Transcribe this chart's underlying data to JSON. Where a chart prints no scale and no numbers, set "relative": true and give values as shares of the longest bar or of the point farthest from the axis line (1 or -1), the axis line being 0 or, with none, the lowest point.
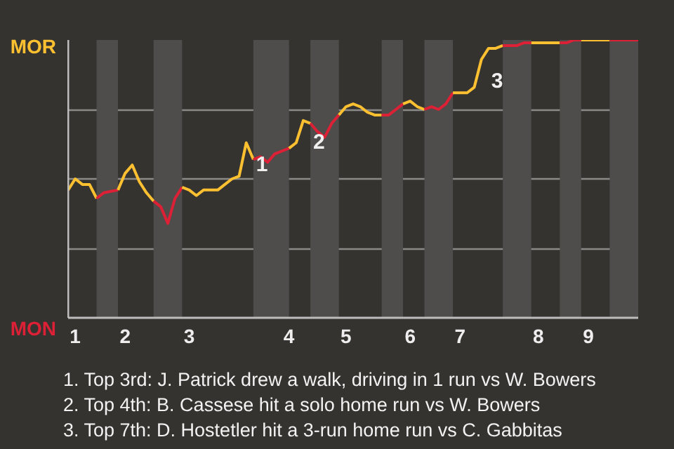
{
  "chart_data": {
    "type": "line",
    "relative": true,
    "grid": "y",
    "marker": "none",
    "line_style": "solid",
    "categories": [
      null,
      "1",
      null,
      null,
      null,
      null,
      null,
      null,
      "2",
      null,
      null,
      null,
      null,
      null,
      null,
      null,
      null,
      "3",
      null,
      null,
      null,
      null,
      null,
      null,
      null,
      null,
      null,
      null,
      null,
      null,
      null,
      "4",
      null,
      null,
      null,
      null,
      null,
      null,
      null,
      "5",
      null,
      null,
      null,
      null,
      null,
      null,
      null,
      null,
      "6",
      null,
      null,
      null,
      null,
      null,
      null,
      "7",
      null,
      null,
      null,
      null,
      null,
      null,
      null,
      null,
      null,
      null,
      "8",
      null,
      null,
      null,
      null,
      null,
      null,
      "9",
      null,
      null,
      null,
      null,
      null,
      null,
      null
    ],
    "series": [
      {
        "color": "#fdc030",
        "values": [
          0.46,
          0.5,
          0.48,
          0.48,
          0.43,
          null,
          null,
          null,
          null,
          null,
          null,
          null,
          null,
          null,
          null,
          null,
          null,
          null,
          null,
          null,
          null,
          null,
          null,
          null,
          null,
          null,
          null,
          null,
          null,
          null,
          null,
          null,
          null,
          null,
          null,
          null,
          null,
          null,
          null,
          null,
          null,
          null,
          null,
          null,
          null,
          null,
          null,
          null,
          null,
          null,
          null,
          null,
          null,
          null,
          null,
          null,
          null,
          null,
          null,
          null,
          null,
          null,
          null,
          null,
          null,
          null,
          null,
          null,
          null,
          null,
          null,
          null,
          null,
          null,
          null,
          null,
          null,
          null,
          null,
          null,
          null
        ]
      },
      {
        "color": "#dc2035",
        "values": [
          null,
          null,
          null,
          null,
          0.43,
          0.45,
          0.455,
          0.46,
          null,
          null,
          null,
          null,
          null,
          null,
          null,
          null,
          null,
          null,
          null,
          null,
          null,
          null,
          null,
          null,
          null,
          null,
          null,
          null,
          null,
          null,
          null,
          null,
          null,
          null,
          null,
          null,
          null,
          null,
          null,
          null,
          null,
          null,
          null,
          null,
          null,
          null,
          null,
          null,
          null,
          null,
          null,
          null,
          null,
          null,
          null,
          null,
          null,
          null,
          null,
          null,
          null,
          null,
          null,
          null,
          null,
          null,
          null,
          null,
          null,
          null,
          null,
          null,
          null,
          null,
          null,
          null,
          null,
          null,
          null,
          null,
          null
        ]
      },
      {
        "color": "#fdc030",
        "values": [
          null,
          null,
          null,
          null,
          null,
          null,
          null,
          0.46,
          0.52,
          0.55,
          0.49,
          0.45,
          0.42,
          null,
          null,
          null,
          null,
          null,
          null,
          null,
          null,
          null,
          null,
          null,
          null,
          null,
          null,
          null,
          null,
          null,
          null,
          null,
          null,
          null,
          null,
          null,
          null,
          null,
          null,
          null,
          null,
          null,
          null,
          null,
          null,
          null,
          null,
          null,
          null,
          null,
          null,
          null,
          null,
          null,
          null,
          null,
          null,
          null,
          null,
          null,
          null,
          null,
          null,
          null,
          null,
          null,
          null,
          null,
          null,
          null,
          null,
          null,
          null,
          null,
          null,
          null,
          null,
          null,
          null,
          null,
          null
        ]
      },
      {
        "color": "#dc2035",
        "values": [
          null,
          null,
          null,
          null,
          null,
          null,
          null,
          null,
          null,
          null,
          null,
          null,
          0.42,
          0.4,
          0.34,
          0.43,
          0.47,
          null,
          null,
          null,
          null,
          null,
          null,
          null,
          null,
          null,
          null,
          null,
          null,
          null,
          null,
          null,
          null,
          null,
          null,
          null,
          null,
          null,
          null,
          null,
          null,
          null,
          null,
          null,
          null,
          null,
          null,
          null,
          null,
          null,
          null,
          null,
          null,
          null,
          null,
          null,
          null,
          null,
          null,
          null,
          null,
          null,
          null,
          null,
          null,
          null,
          null,
          null,
          null,
          null,
          null,
          null,
          null,
          null,
          null,
          null,
          null,
          null,
          null,
          null,
          null
        ]
      },
      {
        "color": "#fdc030",
        "values": [
          null,
          null,
          null,
          null,
          null,
          null,
          null,
          null,
          null,
          null,
          null,
          null,
          null,
          null,
          null,
          null,
          0.47,
          0.46,
          0.44,
          0.46,
          0.46,
          0.46,
          0.48,
          0.5,
          0.51,
          0.63,
          0.57,
          null,
          null,
          null,
          null,
          null,
          null,
          null,
          null,
          null,
          null,
          null,
          null,
          null,
          null,
          null,
          null,
          null,
          null,
          null,
          null,
          null,
          null,
          null,
          null,
          null,
          null,
          null,
          null,
          null,
          null,
          null,
          null,
          null,
          null,
          null,
          null,
          null,
          null,
          null,
          null,
          null,
          null,
          null,
          null,
          null,
          null,
          null,
          null,
          null,
          null,
          null,
          null,
          null,
          null
        ]
      },
      {
        "color": "#dc2035",
        "values": [
          null,
          null,
          null,
          null,
          null,
          null,
          null,
          null,
          null,
          null,
          null,
          null,
          null,
          null,
          null,
          null,
          null,
          null,
          null,
          null,
          null,
          null,
          null,
          null,
          null,
          null,
          0.57,
          0.58,
          0.56,
          0.59,
          0.6,
          0.61,
          null,
          null,
          null,
          null,
          null,
          null,
          null,
          null,
          null,
          null,
          null,
          null,
          null,
          null,
          null,
          null,
          null,
          null,
          null,
          null,
          null,
          null,
          null,
          null,
          null,
          null,
          null,
          null,
          null,
          null,
          null,
          null,
          null,
          null,
          null,
          null,
          null,
          null,
          null,
          null,
          null,
          null,
          null,
          null,
          null,
          null,
          null,
          null,
          null
        ]
      },
      {
        "color": "#fdc030",
        "values": [
          null,
          null,
          null,
          null,
          null,
          null,
          null,
          null,
          null,
          null,
          null,
          null,
          null,
          null,
          null,
          null,
          null,
          null,
          null,
          null,
          null,
          null,
          null,
          null,
          null,
          null,
          null,
          null,
          null,
          null,
          null,
          0.61,
          0.63,
          0.71,
          0.7,
          null,
          null,
          null,
          null,
          null,
          null,
          null,
          null,
          null,
          null,
          null,
          null,
          null,
          null,
          null,
          null,
          null,
          null,
          null,
          null,
          null,
          null,
          null,
          null,
          null,
          null,
          null,
          null,
          null,
          null,
          null,
          null,
          null,
          null,
          null,
          null,
          null,
          null,
          null,
          null,
          null,
          null,
          null,
          null,
          null,
          null
        ]
      },
      {
        "color": "#dc2035",
        "values": [
          null,
          null,
          null,
          null,
          null,
          null,
          null,
          null,
          null,
          null,
          null,
          null,
          null,
          null,
          null,
          null,
          null,
          null,
          null,
          null,
          null,
          null,
          null,
          null,
          null,
          null,
          null,
          null,
          null,
          null,
          null,
          null,
          null,
          null,
          0.7,
          0.67,
          0.65,
          0.7,
          0.73,
          null,
          null,
          null,
          null,
          null,
          null,
          null,
          null,
          null,
          null,
          null,
          null,
          null,
          null,
          null,
          null,
          null,
          null,
          null,
          null,
          null,
          null,
          null,
          null,
          null,
          null,
          null,
          null,
          null,
          null,
          null,
          null,
          null,
          null,
          null,
          null,
          null,
          null,
          null,
          null,
          null,
          null
        ]
      },
      {
        "color": "#fdc030",
        "values": [
          null,
          null,
          null,
          null,
          null,
          null,
          null,
          null,
          null,
          null,
          null,
          null,
          null,
          null,
          null,
          null,
          null,
          null,
          null,
          null,
          null,
          null,
          null,
          null,
          null,
          null,
          null,
          null,
          null,
          null,
          null,
          null,
          null,
          null,
          null,
          null,
          null,
          null,
          0.73,
          0.76,
          0.77,
          0.76,
          0.74,
          0.73,
          0.73,
          null,
          null,
          null,
          null,
          null,
          null,
          null,
          null,
          null,
          null,
          null,
          null,
          null,
          null,
          null,
          null,
          null,
          null,
          null,
          null,
          null,
          null,
          null,
          null,
          null,
          null,
          null,
          null,
          null,
          null,
          null,
          null,
          null,
          null,
          null,
          null
        ]
      },
      {
        "color": "#dc2035",
        "values": [
          null,
          null,
          null,
          null,
          null,
          null,
          null,
          null,
          null,
          null,
          null,
          null,
          null,
          null,
          null,
          null,
          null,
          null,
          null,
          null,
          null,
          null,
          null,
          null,
          null,
          null,
          null,
          null,
          null,
          null,
          null,
          null,
          null,
          null,
          null,
          null,
          null,
          null,
          null,
          null,
          null,
          null,
          null,
          null,
          0.73,
          0.73,
          0.75,
          0.77,
          null,
          null,
          null,
          null,
          null,
          null,
          null,
          null,
          null,
          null,
          null,
          null,
          null,
          null,
          null,
          null,
          null,
          null,
          null,
          null,
          null,
          null,
          null,
          null,
          null,
          null,
          null,
          null,
          null,
          null,
          null,
          null,
          null
        ]
      },
      {
        "color": "#fdc030",
        "values": [
          null,
          null,
          null,
          null,
          null,
          null,
          null,
          null,
          null,
          null,
          null,
          null,
          null,
          null,
          null,
          null,
          null,
          null,
          null,
          null,
          null,
          null,
          null,
          null,
          null,
          null,
          null,
          null,
          null,
          null,
          null,
          null,
          null,
          null,
          null,
          null,
          null,
          null,
          null,
          null,
          null,
          null,
          null,
          null,
          null,
          null,
          null,
          0.77,
          0.78,
          0.76,
          0.75,
          null,
          null,
          null,
          null,
          null,
          null,
          null,
          null,
          null,
          null,
          null,
          null,
          null,
          null,
          null,
          null,
          null,
          null,
          null,
          null,
          null,
          null,
          null,
          null,
          null,
          null,
          null,
          null,
          null,
          null
        ]
      },
      {
        "color": "#dc2035",
        "values": [
          null,
          null,
          null,
          null,
          null,
          null,
          null,
          null,
          null,
          null,
          null,
          null,
          null,
          null,
          null,
          null,
          null,
          null,
          null,
          null,
          null,
          null,
          null,
          null,
          null,
          null,
          null,
          null,
          null,
          null,
          null,
          null,
          null,
          null,
          null,
          null,
          null,
          null,
          null,
          null,
          null,
          null,
          null,
          null,
          null,
          null,
          null,
          null,
          null,
          null,
          0.75,
          0.76,
          0.75,
          0.77,
          0.81,
          null,
          null,
          null,
          null,
          null,
          null,
          null,
          null,
          null,
          null,
          null,
          null,
          null,
          null,
          null,
          null,
          null,
          null,
          null,
          null,
          null,
          null,
          null,
          null,
          null,
          null
        ]
      },
      {
        "color": "#fdc030",
        "values": [
          null,
          null,
          null,
          null,
          null,
          null,
          null,
          null,
          null,
          null,
          null,
          null,
          null,
          null,
          null,
          null,
          null,
          null,
          null,
          null,
          null,
          null,
          null,
          null,
          null,
          null,
          null,
          null,
          null,
          null,
          null,
          null,
          null,
          null,
          null,
          null,
          null,
          null,
          null,
          null,
          null,
          null,
          null,
          null,
          null,
          null,
          null,
          null,
          null,
          null,
          null,
          null,
          null,
          null,
          0.81,
          0.81,
          0.81,
          0.83,
          0.93,
          0.97,
          0.97,
          0.98,
          null,
          null,
          null,
          null,
          null,
          null,
          null,
          null,
          null,
          null,
          null,
          null,
          null,
          null,
          null,
          null,
          null,
          null,
          null
        ]
      },
      {
        "color": "#dc2035",
        "values": [
          null,
          null,
          null,
          null,
          null,
          null,
          null,
          null,
          null,
          null,
          null,
          null,
          null,
          null,
          null,
          null,
          null,
          null,
          null,
          null,
          null,
          null,
          null,
          null,
          null,
          null,
          null,
          null,
          null,
          null,
          null,
          null,
          null,
          null,
          null,
          null,
          null,
          null,
          null,
          null,
          null,
          null,
          null,
          null,
          null,
          null,
          null,
          null,
          null,
          null,
          null,
          null,
          null,
          null,
          null,
          null,
          null,
          null,
          null,
          null,
          null,
          0.98,
          0.98,
          0.98,
          0.99,
          0.99,
          null,
          null,
          null,
          null,
          null,
          null,
          null,
          null,
          null,
          null,
          null,
          null,
          null,
          null,
          null
        ]
      },
      {
        "color": "#fdc030",
        "values": [
          null,
          null,
          null,
          null,
          null,
          null,
          null,
          null,
          null,
          null,
          null,
          null,
          null,
          null,
          null,
          null,
          null,
          null,
          null,
          null,
          null,
          null,
          null,
          null,
          null,
          null,
          null,
          null,
          null,
          null,
          null,
          null,
          null,
          null,
          null,
          null,
          null,
          null,
          null,
          null,
          null,
          null,
          null,
          null,
          null,
          null,
          null,
          null,
          null,
          null,
          null,
          null,
          null,
          null,
          null,
          null,
          null,
          null,
          null,
          null,
          null,
          null,
          null,
          null,
          null,
          0.99,
          0.99,
          0.99,
          0.99,
          0.99,
          null,
          null,
          null,
          null,
          null,
          null,
          null,
          null,
          null,
          null,
          null
        ]
      },
      {
        "color": "#dc2035",
        "values": [
          null,
          null,
          null,
          null,
          null,
          null,
          null,
          null,
          null,
          null,
          null,
          null,
          null,
          null,
          null,
          null,
          null,
          null,
          null,
          null,
          null,
          null,
          null,
          null,
          null,
          null,
          null,
          null,
          null,
          null,
          null,
          null,
          null,
          null,
          null,
          null,
          null,
          null,
          null,
          null,
          null,
          null,
          null,
          null,
          null,
          null,
          null,
          null,
          null,
          null,
          null,
          null,
          null,
          null,
          null,
          null,
          null,
          null,
          null,
          null,
          null,
          null,
          null,
          null,
          null,
          null,
          null,
          null,
          null,
          0.99,
          0.99,
          1.0,
          1.0,
          null,
          null,
          null,
          null,
          null,
          null,
          null,
          null
        ]
      },
      {
        "color": "#fdc030",
        "values": [
          null,
          null,
          null,
          null,
          null,
          null,
          null,
          null,
          null,
          null,
          null,
          null,
          null,
          null,
          null,
          null,
          null,
          null,
          null,
          null,
          null,
          null,
          null,
          null,
          null,
          null,
          null,
          null,
          null,
          null,
          null,
          null,
          null,
          null,
          null,
          null,
          null,
          null,
          null,
          null,
          null,
          null,
          null,
          null,
          null,
          null,
          null,
          null,
          null,
          null,
          null,
          null,
          null,
          null,
          null,
          null,
          null,
          null,
          null,
          null,
          null,
          null,
          null,
          null,
          null,
          null,
          null,
          null,
          null,
          null,
          null,
          null,
          1.0,
          1.0,
          1.0,
          1.0,
          1.0,
          null,
          null,
          null,
          null
        ]
      },
      {
        "color": "#dc2035",
        "values": [
          null,
          null,
          null,
          null,
          null,
          null,
          null,
          null,
          null,
          null,
          null,
          null,
          null,
          null,
          null,
          null,
          null,
          null,
          null,
          null,
          null,
          null,
          null,
          null,
          null,
          null,
          null,
          null,
          null,
          null,
          null,
          null,
          null,
          null,
          null,
          null,
          null,
          null,
          null,
          null,
          null,
          null,
          null,
          null,
          null,
          null,
          null,
          null,
          null,
          null,
          null,
          null,
          null,
          null,
          null,
          null,
          null,
          null,
          null,
          null,
          null,
          null,
          null,
          null,
          null,
          null,
          null,
          null,
          null,
          null,
          null,
          null,
          null,
          null,
          null,
          null,
          1.0,
          1.0,
          1.0,
          1.0,
          1.0
        ]
      }
    ],
    "annotations": [
      "MOR",
      "MON",
      "1",
      "2",
      "3",
      "1. Top 3rd: J. Patrick drew a walk, driving in 1 run vs W. Bowers",
      "2. Top 4th: B. Cassese hit a solo home run vs W. Bowers",
      "3. Top 7th: D. Hostetler hit a 3-run home run vs C. Gabbitas"
    ]
  }
}
